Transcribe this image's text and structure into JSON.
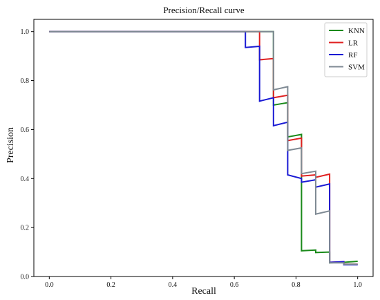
{
  "chart_data": {
    "type": "line",
    "title": "Precision/Recall curve",
    "xlabel": "Recall",
    "ylabel": "Precision",
    "xlim": [
      -0.05,
      1.05
    ],
    "ylim": [
      0.0,
      1.05
    ],
    "xticks": [
      0.0,
      0.2,
      0.4,
      0.6,
      0.8,
      1.0
    ],
    "xtick_labels": [
      "0.0",
      "0.2",
      "0.4",
      "0.6",
      "0.8",
      "1.0"
    ],
    "yticks": [
      0.0,
      0.2,
      0.4,
      0.6,
      0.8,
      1.0
    ],
    "ytick_labels": [
      "0.0",
      "0.2",
      "0.4",
      "0.6",
      "0.8",
      "1.0"
    ],
    "grid": false,
    "legend_position": "top-right",
    "series": [
      {
        "name": "KNN",
        "color": "#1a8a1a",
        "points": [
          [
            0.0,
            1.0
          ],
          [
            0.727,
            1.0
          ],
          [
            0.727,
            0.7
          ],
          [
            0.773,
            0.71
          ],
          [
            0.773,
            0.57
          ],
          [
            0.818,
            0.58
          ],
          [
            0.818,
            0.105
          ],
          [
            0.864,
            0.108
          ],
          [
            0.864,
            0.098
          ],
          [
            0.909,
            0.1
          ],
          [
            0.909,
            0.056
          ],
          [
            0.955,
            0.058
          ],
          [
            0.955,
            0.058
          ],
          [
            1.0,
            0.062
          ]
        ]
      },
      {
        "name": "LR",
        "color": "#e02020",
        "points": [
          [
            0.0,
            1.0
          ],
          [
            0.682,
            1.0
          ],
          [
            0.682,
            0.885
          ],
          [
            0.727,
            0.89
          ],
          [
            0.727,
            0.73
          ],
          [
            0.773,
            0.74
          ],
          [
            0.773,
            0.555
          ],
          [
            0.818,
            0.565
          ],
          [
            0.818,
            0.41
          ],
          [
            0.864,
            0.415
          ],
          [
            0.864,
            0.405
          ],
          [
            0.909,
            0.418
          ],
          [
            0.909,
            0.058
          ],
          [
            0.955,
            0.06
          ],
          [
            0.955,
            0.05
          ],
          [
            1.0,
            0.05
          ]
        ]
      },
      {
        "name": "RF",
        "color": "#1a1ad4",
        "points": [
          [
            0.0,
            1.0
          ],
          [
            0.636,
            1.0
          ],
          [
            0.636,
            0.935
          ],
          [
            0.682,
            0.94
          ],
          [
            0.682,
            0.716
          ],
          [
            0.727,
            0.73
          ],
          [
            0.727,
            0.616
          ],
          [
            0.773,
            0.63
          ],
          [
            0.773,
            0.415
          ],
          [
            0.818,
            0.4
          ],
          [
            0.818,
            0.385
          ],
          [
            0.864,
            0.395
          ],
          [
            0.864,
            0.365
          ],
          [
            0.909,
            0.378
          ],
          [
            0.909,
            0.058
          ],
          [
            0.955,
            0.06
          ],
          [
            0.955,
            0.048
          ],
          [
            1.0,
            0.048
          ]
        ]
      },
      {
        "name": "SVM",
        "color": "#7f8a94",
        "points": [
          [
            0.0,
            1.0
          ],
          [
            0.727,
            1.0
          ],
          [
            0.727,
            0.762
          ],
          [
            0.773,
            0.775
          ],
          [
            0.773,
            0.515
          ],
          [
            0.818,
            0.525
          ],
          [
            0.818,
            0.42
          ],
          [
            0.864,
            0.43
          ],
          [
            0.864,
            0.255
          ],
          [
            0.909,
            0.268
          ],
          [
            0.909,
            0.056
          ],
          [
            0.955,
            0.056
          ],
          [
            0.955,
            0.05
          ],
          [
            1.0,
            0.05
          ]
        ]
      }
    ]
  }
}
